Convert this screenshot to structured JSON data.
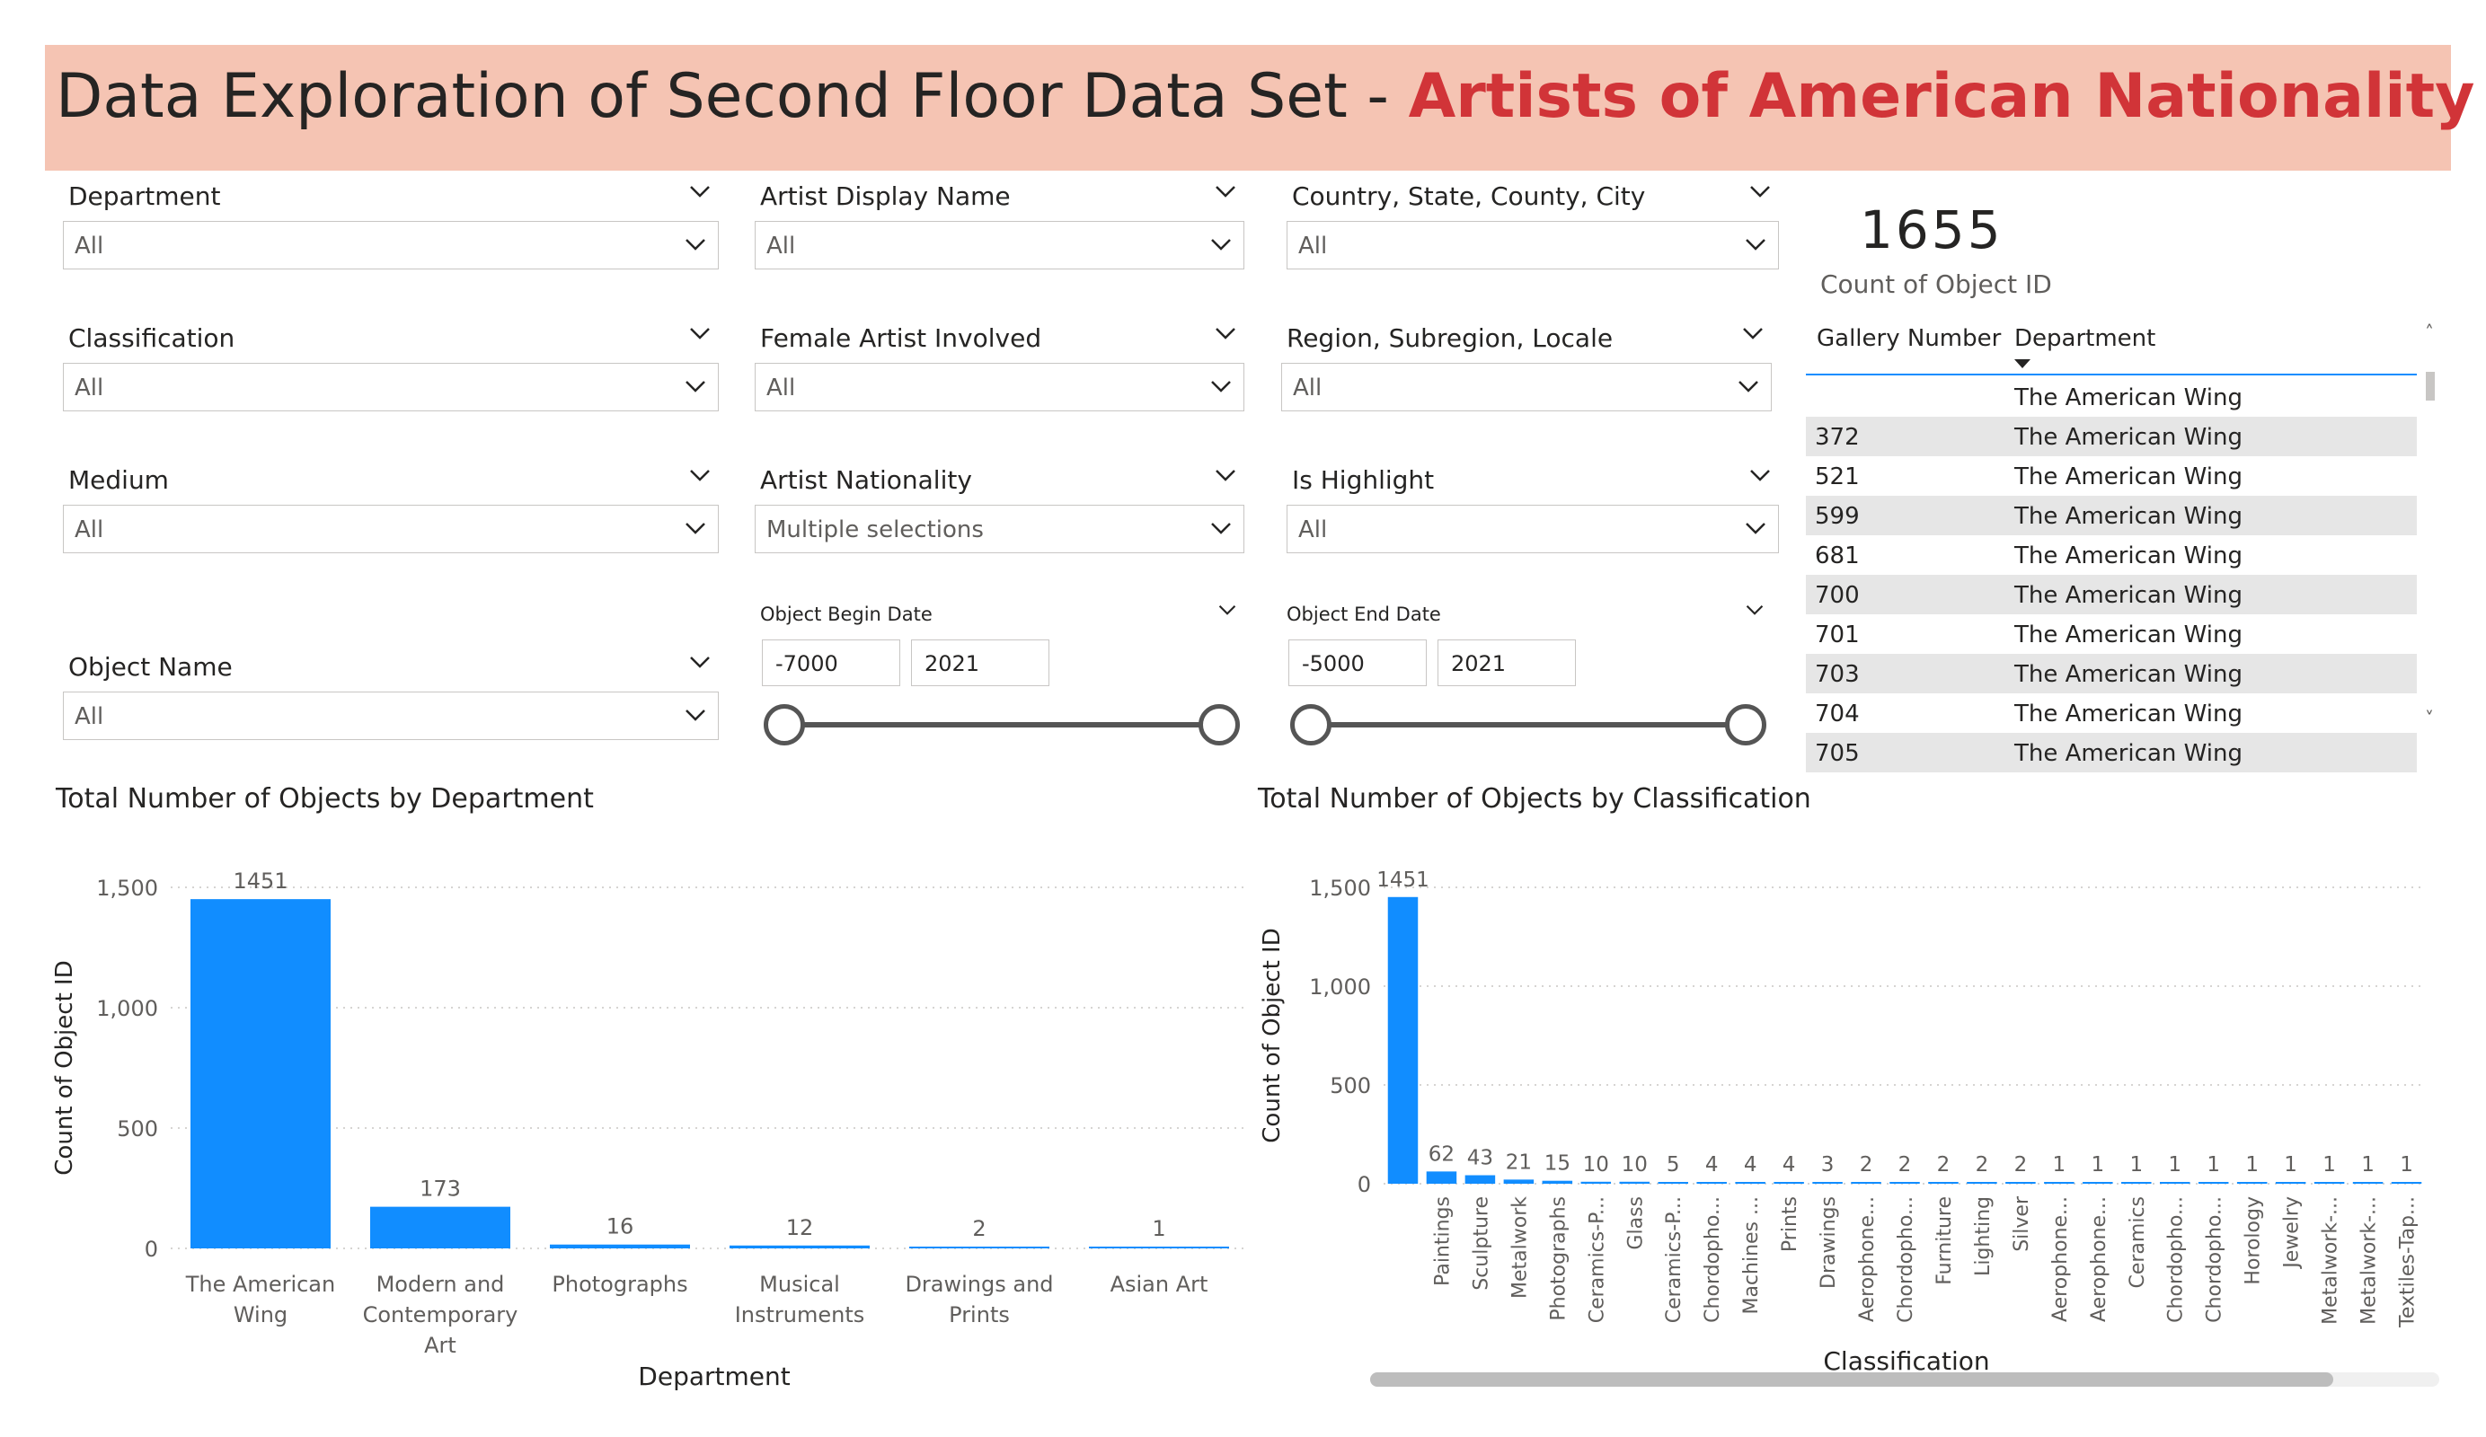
{
  "title": {
    "prefix": "Data Exploration of Second Floor Data Set - ",
    "accent": "Artists of American Nationality",
    "accent_color": "#d13438",
    "bar_color": "#f5c4b3"
  },
  "slicers": {
    "department": {
      "label": "Department",
      "value": "All"
    },
    "artist_display_name": {
      "label": "Artist Display Name",
      "value": "All"
    },
    "country": {
      "label": "Country, State, County, City",
      "value": "All"
    },
    "classification": {
      "label": "Classification",
      "value": "All"
    },
    "female_artist": {
      "label": "Female Artist Involved",
      "value": "All"
    },
    "region": {
      "label": "Region, Subregion, Locale",
      "value": "All"
    },
    "medium": {
      "label": "Medium",
      "value": "All"
    },
    "artist_nationality": {
      "label": "Artist Nationality",
      "value": "Multiple selections"
    },
    "is_highlight": {
      "label": "Is Highlight",
      "value": "All"
    },
    "object_name": {
      "label": "Object Name",
      "value": "All"
    },
    "object_begin_date": {
      "label": "Object Begin Date",
      "min": "-7000",
      "max": "2021"
    },
    "object_end_date": {
      "label": "Object End Date",
      "min": "-5000",
      "max": "2021"
    }
  },
  "card": {
    "value": "1655",
    "label": "Count of Object ID"
  },
  "table": {
    "columns": [
      "Gallery Number",
      "Department"
    ],
    "rows": [
      {
        "gallery": "",
        "department": "The American Wing"
      },
      {
        "gallery": "372",
        "department": "The American Wing"
      },
      {
        "gallery": "521",
        "department": "The American Wing"
      },
      {
        "gallery": "599",
        "department": "The American Wing"
      },
      {
        "gallery": "681",
        "department": "The American Wing"
      },
      {
        "gallery": "700",
        "department": "The American Wing"
      },
      {
        "gallery": "701",
        "department": "The American Wing"
      },
      {
        "gallery": "703",
        "department": "The American Wing"
      },
      {
        "gallery": "704",
        "department": "The American Wing"
      },
      {
        "gallery": "705",
        "department": "The American Wing"
      }
    ]
  },
  "chart_data": [
    {
      "type": "bar",
      "title": "Total Number of Objects by Department",
      "xlabel": "Department",
      "ylabel": "Count of Object ID",
      "categories": [
        "The American Wing",
        "Modern and Contemporary Art",
        "Photographs",
        "Musical Instruments",
        "Drawings and Prints",
        "Asian Art"
      ],
      "values": [
        1451,
        173,
        16,
        12,
        2,
        1
      ],
      "yticks": [
        "0",
        "500",
        "1,000",
        "1,500"
      ],
      "ylim": [
        0,
        1500
      ],
      "grid": true,
      "color": "#118dff"
    },
    {
      "type": "bar",
      "title": "Total Number of Objects by Classification",
      "xlabel": "Classification",
      "ylabel": "Count of Object ID",
      "categories": [
        "",
        "Paintings",
        "Sculpture",
        "Metalwork",
        "Photographs",
        "Ceramics-P...",
        "Glass",
        "Ceramics-P...",
        "Chordopho...",
        "Machines ...",
        "Prints",
        "Drawings",
        "Aerophone...",
        "Chordopho...",
        "Furniture",
        "Lighting",
        "Silver",
        "Aerophone...",
        "Aerophone...",
        "Ceramics",
        "Chordopho...",
        "Chordopho...",
        "Horology",
        "Jewelry",
        "Metalwork-...",
        "Metalwork-...",
        "Textiles-Tap..."
      ],
      "values": [
        1451,
        62,
        43,
        21,
        15,
        10,
        10,
        5,
        4,
        4,
        4,
        3,
        2,
        2,
        2,
        2,
        2,
        1,
        1,
        1,
        1,
        1,
        1,
        1,
        1,
        1,
        1
      ],
      "yticks": [
        "0",
        "500",
        "1,000",
        "1,500"
      ],
      "ylim": [
        0,
        1500
      ],
      "grid": true,
      "color": "#118dff"
    }
  ]
}
